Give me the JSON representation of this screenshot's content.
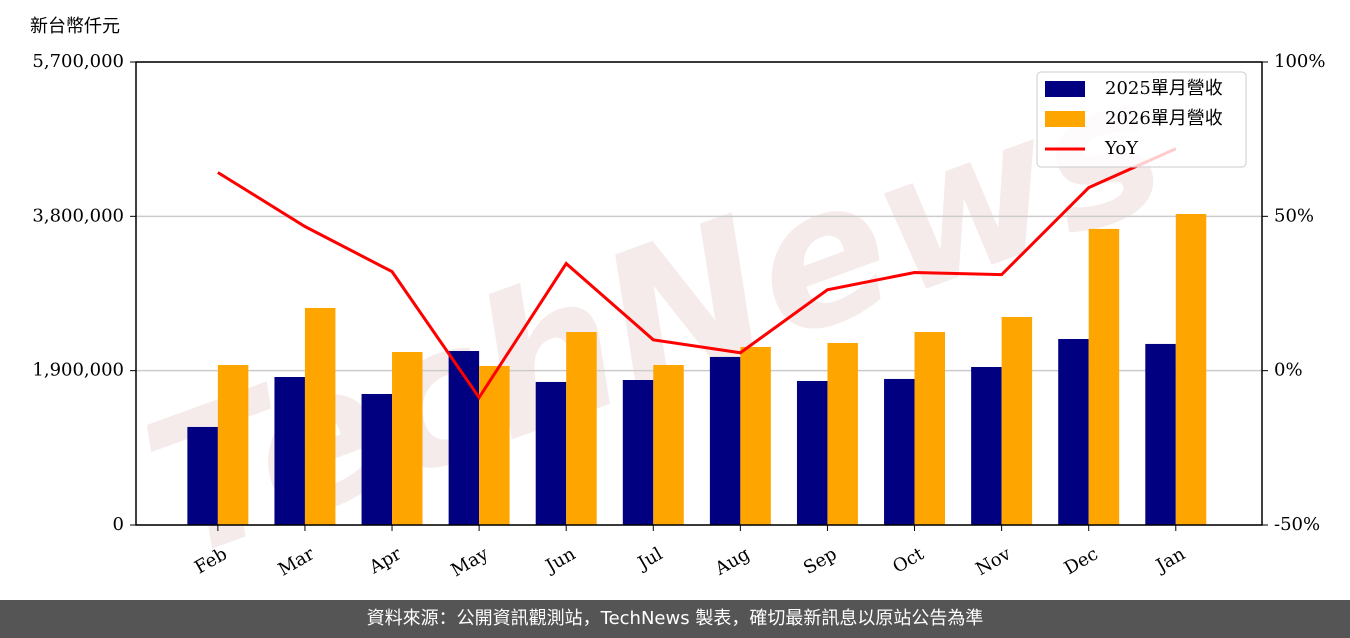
{
  "chart_data": {
    "type": "bar",
    "y_label": "新台幣仟元",
    "watermark": "TechNews",
    "categories": [
      "Feb",
      "Mar",
      "Apr",
      "May",
      "Jun",
      "Jul",
      "Aug",
      "Sep",
      "Oct",
      "Nov",
      "Dec",
      "Jan"
    ],
    "series": [
      {
        "name": "2025單月營收",
        "type": "bar",
        "color": "#000080",
        "values": [
          1207000,
          1822000,
          1613000,
          2142000,
          1761000,
          1785000,
          2069000,
          1773000,
          1798000,
          1945000,
          2290000,
          2229000
        ]
      },
      {
        "name": "2026單月營收",
        "type": "bar",
        "color": "#ffa500",
        "values": [
          1970000,
          2672000,
          2130000,
          1958000,
          2376000,
          1970000,
          2192000,
          2241000,
          2376000,
          2561000,
          3645000,
          3829000
        ]
      },
      {
        "name": "YoY",
        "type": "line",
        "axis": "y2",
        "color": "#ff0000",
        "values": [
          64.2,
          46.7,
          32.1,
          -8.7,
          34.7,
          10.0,
          5.8,
          26.2,
          31.8,
          31.1,
          59.3,
          71.9
        ]
      }
    ],
    "ylim": [
      0,
      5700000
    ],
    "yticks": [
      0,
      {
        "value": 1900000,
        "label": "1,900,000"
      },
      {
        "value": 3800000,
        "label": "3,800,000"
      },
      {
        "value": 5700000,
        "label": "5,700,000"
      }
    ],
    "y2lim": [
      -50,
      100
    ],
    "y2ticks": [
      {
        "value": -50,
        "label": "-50%"
      },
      {
        "value": 0,
        "label": "0%"
      },
      {
        "value": 50,
        "label": "50%"
      },
      {
        "value": 100,
        "label": "100%"
      }
    ],
    "grid": true,
    "legend": "upper right"
  },
  "footer": "資料來源：公開資訊觀測站，TechNews 製表，確切最新訊息以原站公告為準"
}
